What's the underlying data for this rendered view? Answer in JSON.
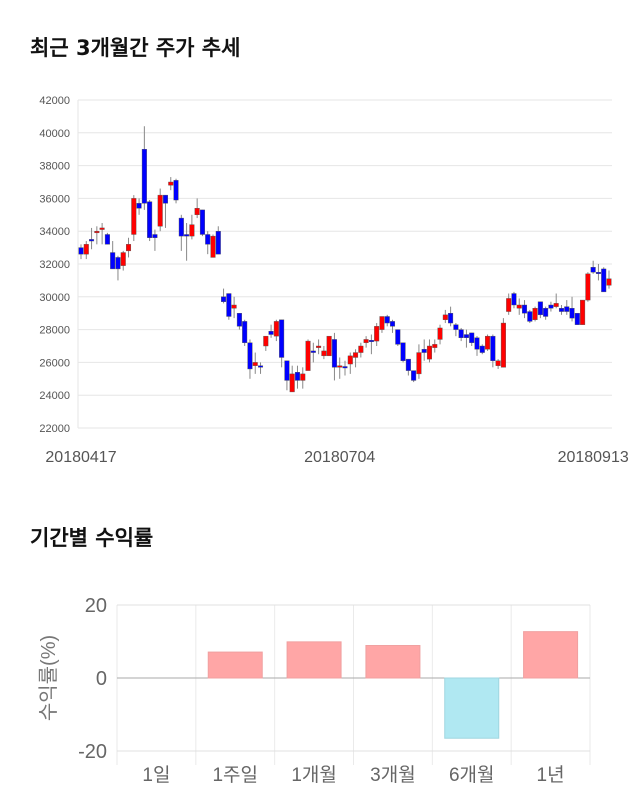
{
  "chart_data": [
    {
      "type": "candlestick",
      "title": "최근 3개월간 주가 추세",
      "ylim": [
        22000,
        42000
      ],
      "yticks": [
        22000,
        24000,
        26000,
        28000,
        30000,
        32000,
        34000,
        36000,
        38000,
        40000,
        42000
      ],
      "xtick_labels": [
        {
          "index": 0,
          "label": "20180417"
        },
        {
          "index": 49,
          "label": "20180704"
        },
        {
          "index": 97,
          "label": "20180913"
        }
      ],
      "grid": true,
      "up_color": "#ff0000",
      "down_color": "#0000ff",
      "ohlc": [
        [
          33000,
          33200,
          32300,
          32600
        ],
        [
          32600,
          33400,
          32300,
          33200
        ],
        [
          33500,
          34200,
          32900,
          33400
        ],
        [
          33900,
          34300,
          33200,
          34000
        ],
        [
          34100,
          34500,
          33200,
          34200
        ],
        [
          33800,
          33900,
          33200,
          33200
        ],
        [
          32700,
          33400,
          31700,
          31700
        ],
        [
          32400,
          32500,
          31000,
          31700
        ],
        [
          31900,
          32800,
          31600,
          32700
        ],
        [
          32800,
          33600,
          32400,
          33200
        ],
        [
          33800,
          36200,
          33400,
          36000
        ],
        [
          35700,
          36000,
          35000,
          35400
        ],
        [
          39000,
          40400,
          35300,
          35700
        ],
        [
          35800,
          35900,
          33400,
          33600
        ],
        [
          33800,
          34100,
          32800,
          33600
        ],
        [
          34300,
          36600,
          34000,
          36200
        ],
        [
          36200,
          36200,
          34200,
          35700
        ],
        [
          36800,
          37300,
          36500,
          37000
        ],
        [
          37100,
          37200,
          35700,
          35900
        ],
        [
          34800,
          35000,
          32800,
          33700
        ],
        [
          33800,
          34500,
          32200,
          33700
        ],
        [
          33700,
          35000,
          33500,
          34400
        ],
        [
          35000,
          36000,
          34800,
          35400
        ],
        [
          35300,
          35300,
          33700,
          33800
        ],
        [
          33800,
          34000,
          32600,
          33200
        ],
        [
          32400,
          33800,
          32400,
          33700
        ],
        [
          34000,
          34300,
          32600,
          32600
        ],
        [
          30000,
          30500,
          29600,
          29700
        ],
        [
          30200,
          30200,
          28600,
          28800
        ],
        [
          29300,
          30000,
          28700,
          29500
        ],
        [
          29000,
          29000,
          28000,
          28200
        ],
        [
          28500,
          28600,
          27000,
          27200
        ],
        [
          27200,
          27400,
          25000,
          25600
        ],
        [
          25800,
          26600,
          25300,
          26000
        ],
        [
          25800,
          26000,
          25300,
          25700
        ],
        [
          27000,
          27600,
          26700,
          27600
        ],
        [
          27900,
          28300,
          27500,
          27700
        ],
        [
          27600,
          28600,
          27300,
          28500
        ],
        [
          28600,
          28600,
          25700,
          26300
        ],
        [
          26100,
          26100,
          24300,
          24900
        ],
        [
          24200,
          25800,
          24200,
          25300
        ],
        [
          25400,
          25800,
          24400,
          24900
        ],
        [
          24900,
          25700,
          24400,
          25300
        ],
        [
          25500,
          27400,
          25500,
          27300
        ],
        [
          26700,
          27200,
          26000,
          26600
        ],
        [
          26900,
          27400,
          26500,
          27000
        ],
        [
          26400,
          27000,
          26200,
          26700
        ],
        [
          26400,
          27600,
          26400,
          27600
        ],
        [
          27400,
          27800,
          24900,
          25700
        ],
        [
          25700,
          26300,
          25000,
          25800
        ],
        [
          25750,
          26100,
          25200,
          25700
        ],
        [
          25900,
          26600,
          25300,
          26400
        ],
        [
          26300,
          26800,
          25700,
          26600
        ],
        [
          26600,
          27200,
          26300,
          27000
        ],
        [
          27200,
          27600,
          26900,
          27400
        ],
        [
          27350,
          27700,
          26500,
          27300
        ],
        [
          27300,
          28400,
          27000,
          28200
        ],
        [
          28000,
          28800,
          27800,
          28800
        ],
        [
          28800,
          28900,
          28200,
          28400
        ],
        [
          28500,
          28600,
          27800,
          28200
        ],
        [
          28000,
          28000,
          27000,
          27100
        ],
        [
          27200,
          27200,
          26000,
          26100
        ],
        [
          26200,
          26200,
          25200,
          25500
        ],
        [
          25500,
          25500,
          24800,
          24900
        ],
        [
          25300,
          27100,
          25000,
          26600
        ],
        [
          26800,
          27400,
          26100,
          26600
        ],
        [
          26200,
          27400,
          26000,
          27000
        ],
        [
          26900,
          27400,
          26600,
          27100
        ],
        [
          27400,
          28300,
          27100,
          28100
        ],
        [
          28600,
          29200,
          28400,
          28900
        ],
        [
          29000,
          29400,
          28200,
          28400
        ],
        [
          28300,
          28400,
          27600,
          28000
        ],
        [
          28000,
          28100,
          27300,
          27500
        ],
        [
          27700,
          28000,
          26900,
          27500
        ],
        [
          27800,
          27800,
          27000,
          27200
        ],
        [
          27500,
          27600,
          26400,
          26800
        ],
        [
          27000,
          27100,
          26500,
          26600
        ],
        [
          26800,
          27700,
          26700,
          27600
        ],
        [
          27600,
          27700,
          25700,
          26100
        ],
        [
          25800,
          26200,
          25600,
          26100
        ],
        [
          25700,
          28700,
          25700,
          28400
        ],
        [
          29100,
          30200,
          28900,
          29900
        ],
        [
          30200,
          30300,
          29300,
          29500
        ],
        [
          29300,
          29900,
          28900,
          29500
        ],
        [
          29500,
          29800,
          28700,
          29000
        ],
        [
          29100,
          29200,
          28400,
          28500
        ],
        [
          28600,
          29400,
          28500,
          29300
        ],
        [
          29700,
          29700,
          28700,
          28900
        ],
        [
          29300,
          29400,
          28600,
          28800
        ],
        [
          29500,
          29700,
          29100,
          29300
        ],
        [
          29400,
          30200,
          29300,
          29600
        ],
        [
          29300,
          29500,
          28900,
          29100
        ],
        [
          29400,
          29800,
          28900,
          29100
        ],
        [
          29300,
          30000,
          28500,
          28700
        ],
        [
          29000,
          29000,
          28300,
          28300
        ],
        [
          28300,
          29800,
          28300,
          29800
        ],
        [
          29800,
          31500,
          29700,
          31400
        ],
        [
          31800,
          32200,
          31400,
          31500
        ],
        [
          31500,
          32000,
          31000,
          31450
        ],
        [
          31700,
          31800,
          30300,
          30300
        ],
        [
          30700,
          31600,
          30500,
          31100
        ]
      ]
    },
    {
      "type": "bar",
      "title": "기간별 수익률",
      "ylabel": "수익률(%)",
      "ylim": [
        -20,
        20
      ],
      "yticks": [
        -20,
        0,
        20
      ],
      "categories": [
        "1일",
        "1주일",
        "1개월",
        "3개월",
        "6개월",
        "1년"
      ],
      "values": [
        0,
        7.1,
        9.9,
        8.9,
        -16.5,
        12.7
      ],
      "positive_color": "#ffa6a6",
      "negative_color": "#b0e8f2",
      "grid": true
    }
  ]
}
